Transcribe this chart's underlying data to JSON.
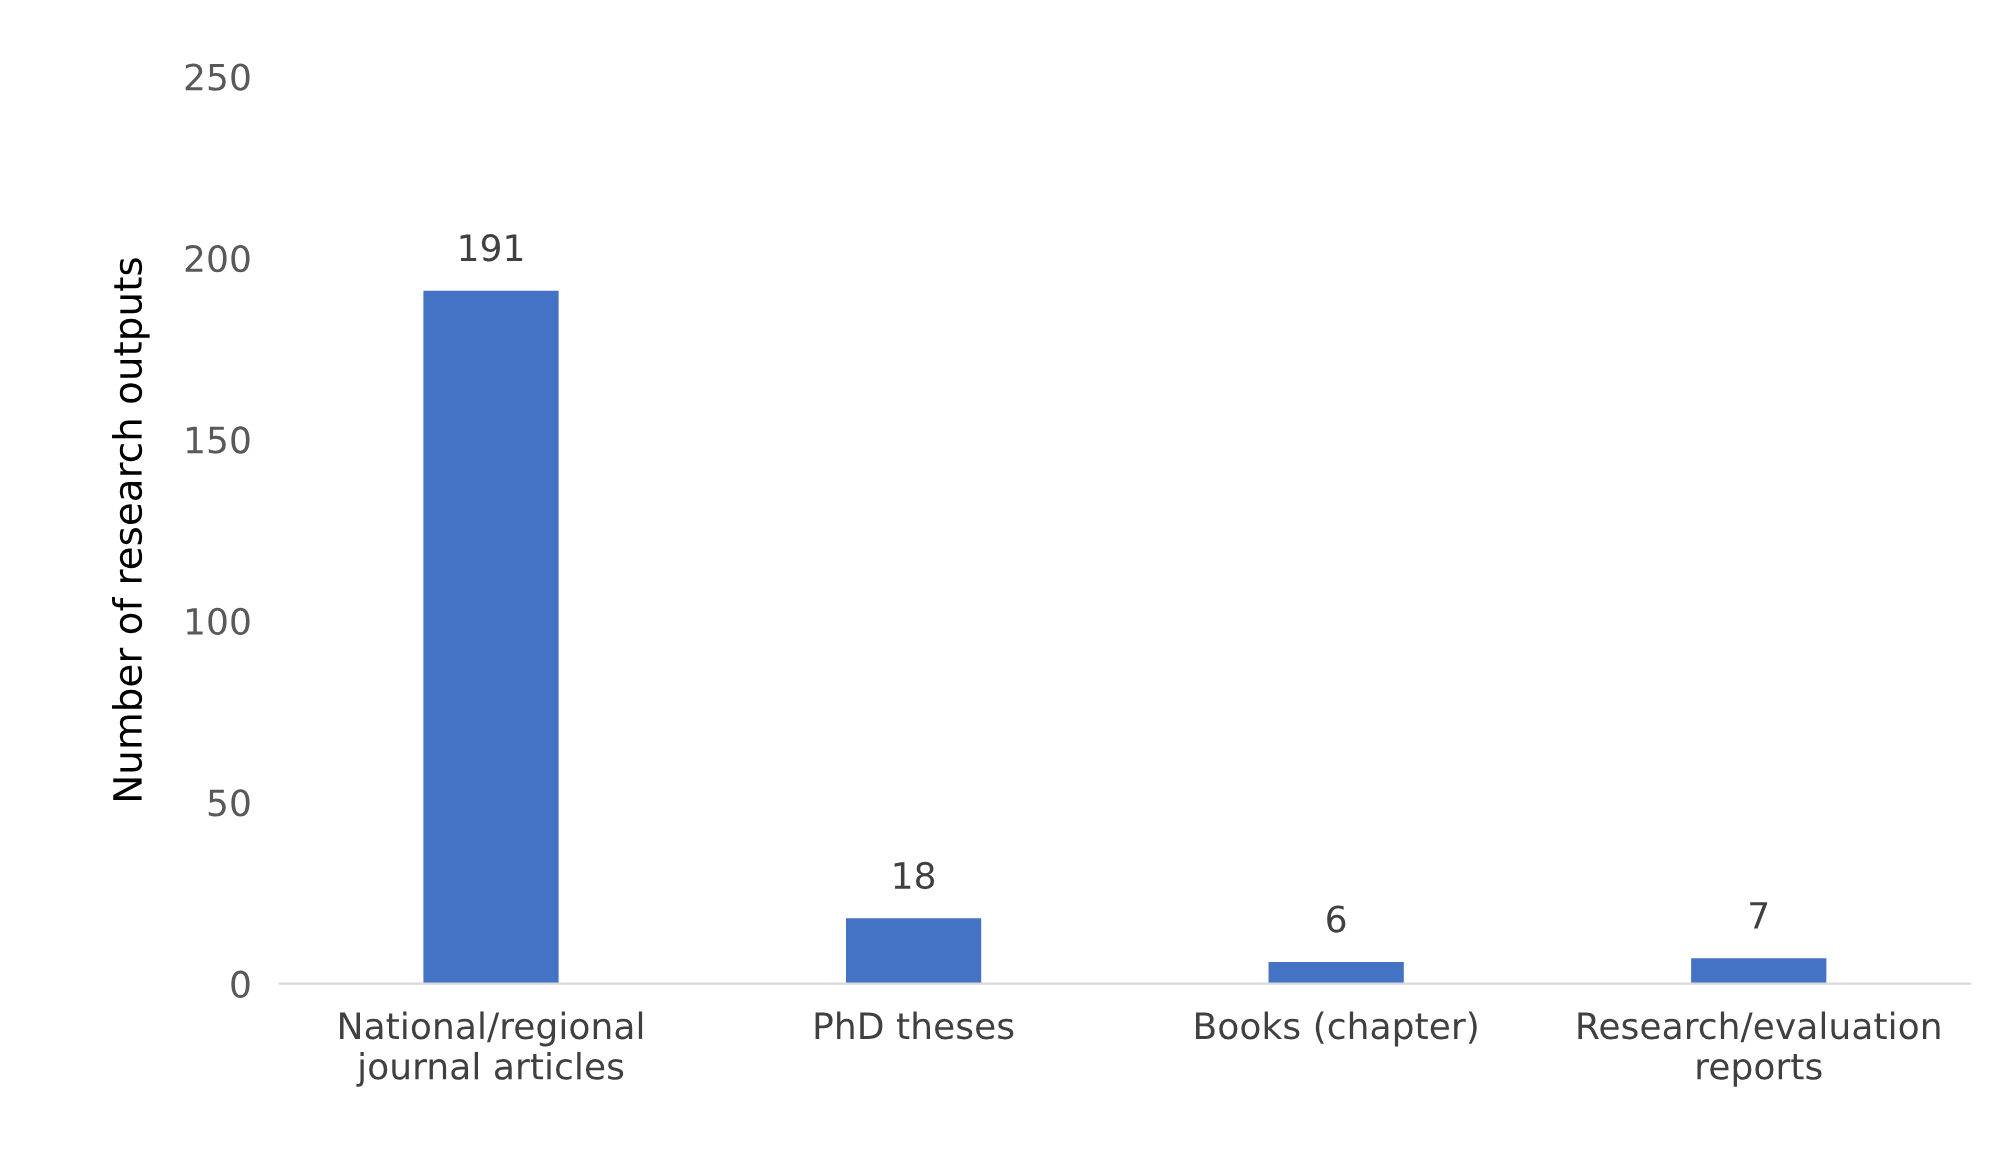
{
  "chart_data": {
    "type": "bar",
    "ylabel": "Number of research outputs",
    "categories": [
      "National/regional\njournal articles",
      "PhD theses",
      "Books (chapter)",
      "Research/evaluation\nreports"
    ],
    "values": [
      191,
      18,
      6,
      7
    ],
    "color": "#4472c4",
    "ylim": [
      0,
      250
    ],
    "yticks": [
      0,
      50,
      100,
      150,
      200,
      250
    ],
    "grid": false,
    "data_labels": true
  }
}
